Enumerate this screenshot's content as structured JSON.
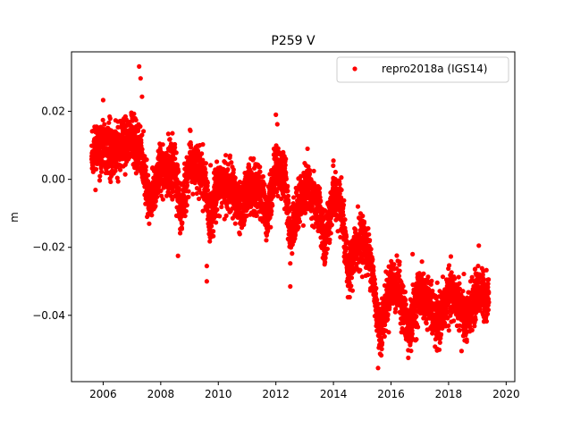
{
  "chart_data": {
    "type": "scatter",
    "title": "P259 V",
    "xlabel": "",
    "ylabel": "m",
    "xlim": [
      2004.9,
      2020.3
    ],
    "ylim": [
      -0.0595,
      0.0375
    ],
    "xticks": [
      2006,
      2008,
      2010,
      2012,
      2014,
      2016,
      2018,
      2020
    ],
    "xtick_labels": [
      "2006",
      "2008",
      "2010",
      "2012",
      "2014",
      "2016",
      "2018",
      "2020"
    ],
    "yticks": [
      -0.04,
      -0.02,
      0.0,
      0.02
    ],
    "ytick_labels": [
      "−0.04",
      "−0.02",
      "0.00",
      "0.02"
    ],
    "grid": false,
    "legend_position": "top-right",
    "marker_color": "#ff0000",
    "series": [
      {
        "name": "repro2018a (IGS14)",
        "color": "#ff0000",
        "marker": "circle",
        "time_span": [
          2005.6,
          2019.4
        ],
        "trend": [
          [
            2005.6,
            0.009
          ],
          [
            2006.0,
            0.01
          ],
          [
            2006.5,
            0.009
          ],
          [
            2007.0,
            0.012
          ],
          [
            2007.3,
            0.008
          ],
          [
            2007.6,
            -0.008
          ],
          [
            2008.0,
            0.004
          ],
          [
            2008.5,
            0.002
          ],
          [
            2008.7,
            -0.01
          ],
          [
            2009.0,
            0.005
          ],
          [
            2009.5,
            0.001
          ],
          [
            2009.7,
            -0.012
          ],
          [
            2010.0,
            -0.001
          ],
          [
            2010.5,
            -0.003
          ],
          [
            2010.8,
            -0.01
          ],
          [
            2011.0,
            -0.002
          ],
          [
            2011.5,
            -0.004
          ],
          [
            2011.7,
            -0.011
          ],
          [
            2012.0,
            0.004
          ],
          [
            2012.3,
            0.001
          ],
          [
            2012.5,
            -0.016
          ],
          [
            2013.0,
            -0.002
          ],
          [
            2013.5,
            -0.008
          ],
          [
            2013.7,
            -0.02
          ],
          [
            2014.0,
            -0.004
          ],
          [
            2014.3,
            -0.01
          ],
          [
            2014.5,
            -0.028
          ],
          [
            2014.8,
            -0.02
          ],
          [
            2015.0,
            -0.017
          ],
          [
            2015.3,
            -0.024
          ],
          [
            2015.6,
            -0.045
          ],
          [
            2015.8,
            -0.038
          ],
          [
            2016.0,
            -0.03
          ],
          [
            2016.3,
            -0.033
          ],
          [
            2016.6,
            -0.045
          ],
          [
            2017.0,
            -0.033
          ],
          [
            2017.3,
            -0.036
          ],
          [
            2017.6,
            -0.043
          ],
          [
            2018.0,
            -0.034
          ],
          [
            2018.3,
            -0.035
          ],
          [
            2018.6,
            -0.042
          ],
          [
            2019.0,
            -0.033
          ],
          [
            2019.4,
            -0.035
          ]
        ],
        "scatter_sd": 0.0035,
        "notable_points": [
          [
            2007.25,
            0.0332
          ],
          [
            2007.3,
            0.0297
          ],
          [
            2006.0,
            0.0233
          ],
          [
            2007.35,
            0.0243
          ],
          [
            2012.0,
            0.019
          ],
          [
            2012.05,
            0.0162
          ],
          [
            2008.6,
            -0.0225
          ],
          [
            2009.6,
            -0.03
          ],
          [
            2009.6,
            -0.0255
          ],
          [
            2012.5,
            -0.0315
          ],
          [
            2015.55,
            -0.0555
          ],
          [
            2016.6,
            -0.0525
          ],
          [
            2018.45,
            -0.0505
          ],
          [
            2019.05,
            -0.0195
          ],
          [
            2016.75,
            -0.022
          ],
          [
            2013.1,
            0.009
          ],
          [
            2014.0,
            0.0055
          ],
          [
            2014.85,
            -0.008
          ]
        ]
      }
    ]
  }
}
